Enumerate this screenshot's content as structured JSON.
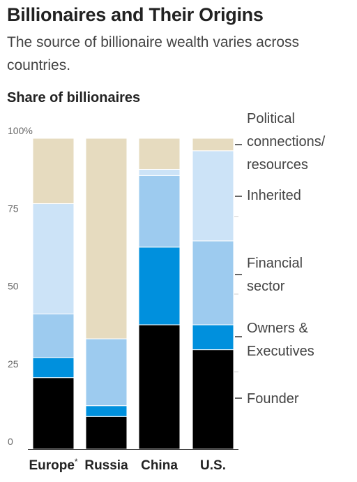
{
  "header": {
    "title": "Billionaires and Their Origins",
    "subtitle": "The source of billionaire wealth varies across countries."
  },
  "chart_data": {
    "type": "bar",
    "stacked": true,
    "ylabel": "Share of billionaires",
    "ylim": [
      0,
      100
    ],
    "yticks": [
      "100%",
      "75",
      "50",
      "25",
      "0"
    ],
    "categories": [
      "Europe",
      "Russia",
      "China",
      "U.S."
    ],
    "category_footnotes": [
      "*",
      "",
      "",
      ""
    ],
    "series": [
      {
        "name": "Founder",
        "color": "#000000",
        "values": [
          23,
          10.5,
          40,
          32
        ]
      },
      {
        "name": "Owners & Executives",
        "color": "#0090dd",
        "values": [
          6.5,
          3.5,
          25,
          8
        ]
      },
      {
        "name": "Financial sector",
        "color": "#9dcbef",
        "values": [
          14,
          21.5,
          23,
          27
        ]
      },
      {
        "name": "Inherited",
        "color": "#cce3f7",
        "values": [
          35.5,
          0,
          2,
          29
        ]
      },
      {
        "name": "Political connections/ resources",
        "color": "#e6dbbf",
        "values": [
          21,
          64.5,
          10,
          4
        ]
      }
    ],
    "legend_placement": "right",
    "legend_lines": [
      [
        "Political",
        "connections/",
        "resources"
      ],
      [
        "Inherited"
      ],
      [
        "Financial",
        "sector"
      ],
      [
        "Owners &",
        "Executives"
      ],
      [
        "Founder"
      ]
    ],
    "grid": false
  }
}
